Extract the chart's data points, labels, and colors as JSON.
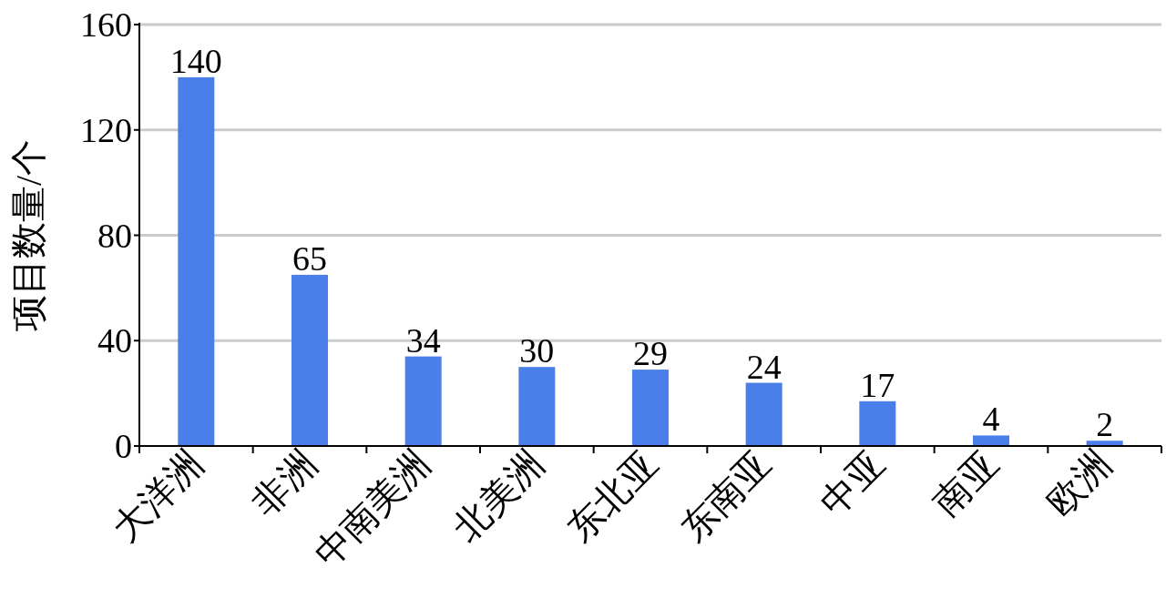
{
  "chart_data": {
    "type": "bar",
    "ylabel": "项目数量/个",
    "categories": [
      "大洋洲",
      "非洲",
      "中南美洲",
      "北美洲",
      "东北亚",
      "东南亚",
      "中亚",
      "南亚",
      "欧洲"
    ],
    "values": [
      140,
      65,
      34,
      30,
      29,
      24,
      17,
      4,
      2
    ],
    "color": "#4a7fea",
    "ylim": [
      0,
      160
    ],
    "yticks": [
      0,
      40,
      80,
      120,
      160
    ],
    "grid": "y",
    "data_labels": true
  }
}
